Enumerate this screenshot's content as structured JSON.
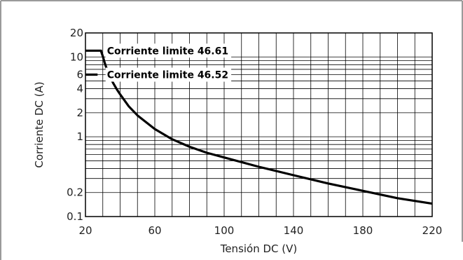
{
  "chart_data": {
    "type": "line",
    "xlabel": "Tensión DC (V)",
    "ylabel": "Corriente DC (A)",
    "x_axis": {
      "scale": "linear",
      "lim": [
        20,
        220
      ],
      "ticks": [
        20,
        60,
        100,
        140,
        180,
        220
      ],
      "tick_labels": [
        "20",
        "60",
        "100",
        "140",
        "180",
        "220"
      ],
      "minor_grid_step": 10
    },
    "y_axis": {
      "scale": "log",
      "lim": [
        0.1,
        20
      ],
      "tick_labels": [
        {
          "value": 20,
          "label": "20"
        },
        {
          "value": 10,
          "label": "10"
        },
        {
          "value": 6,
          "label": "6"
        },
        {
          "value": 4,
          "label": "4"
        },
        {
          "value": 2,
          "label": "2"
        },
        {
          "value": 1,
          "label": "1"
        },
        {
          "value": 0.2,
          "label": "0.2"
        },
        {
          "value": 0.1,
          "label": "0.1"
        }
      ],
      "grid_values": [
        0.1,
        0.2,
        0.3,
        0.4,
        0.5,
        0.6,
        0.7,
        0.8,
        0.9,
        1,
        2,
        3,
        4,
        5,
        6,
        7,
        8,
        9,
        10,
        20
      ]
    },
    "grid": true,
    "series": [
      {
        "x": [
          20,
          29,
          29,
          30,
          31,
          32,
          33,
          34,
          35,
          36,
          38,
          40,
          45,
          50,
          60,
          70,
          80,
          90,
          100,
          120,
          140,
          160,
          180,
          200,
          220
        ],
        "y": [
          12,
          12,
          11.8,
          10.2,
          8.6,
          7.4,
          6.5,
          5.8,
          5.2,
          4.7,
          3.95,
          3.4,
          2.4,
          1.85,
          1.25,
          0.93,
          0.75,
          0.63,
          0.55,
          0.42,
          0.33,
          0.26,
          0.21,
          0.17,
          0.145
        ]
      },
      {
        "x": [
          20,
          27
        ],
        "y": [
          6,
          6
        ]
      }
    ],
    "annotations": [
      {
        "text": "Corriente limite 46.61",
        "x": 30,
        "y": 12
      },
      {
        "text": "Corriente limite 46.52",
        "x": 30,
        "y": 6
      }
    ]
  }
}
